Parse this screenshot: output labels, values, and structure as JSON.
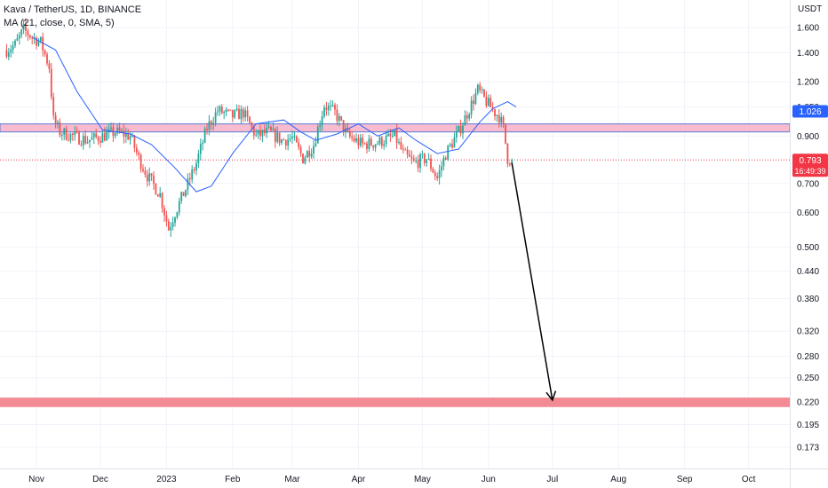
{
  "legend": {
    "title": "Kava / TetherUS, 1D, BINANCE",
    "ma": "MA (21, close, 0, SMA, 5)"
  },
  "colors": {
    "up": "#26a69a",
    "down": "#ef5350",
    "ma_line": "#2962ff",
    "current_price_badge": "#f23645",
    "blue_badge": "#2962ff",
    "zone_fill": "#f8bbd0",
    "zone_border": "#5b7bd5",
    "target_zone": "#f28b93",
    "arrow": "#000000"
  },
  "chart_data": {
    "type": "candlestick",
    "title": "Kava / TetherUS, 1D, BINANCE",
    "y_scale": "log",
    "y_unit": "USDT",
    "ylim": [
      0.16,
      1.75
    ],
    "y_ticks": [
      {
        "value": 1.6,
        "label": "1.600"
      },
      {
        "value": 1.4,
        "label": "1.400"
      },
      {
        "value": 1.2,
        "label": "1.200"
      },
      {
        "value": 1.05,
        "label": "1.050"
      },
      {
        "value": 0.9,
        "label": "0.900"
      },
      {
        "value": 0.7,
        "label": "0.700"
      },
      {
        "value": 0.6,
        "label": "0.600"
      },
      {
        "value": 0.5,
        "label": "0.500"
      },
      {
        "value": 0.44,
        "label": "0.440"
      },
      {
        "value": 0.38,
        "label": "0.380"
      },
      {
        "value": 0.32,
        "label": "0.320"
      },
      {
        "value": 0.28,
        "label": "0.280"
      },
      {
        "value": 0.25,
        "label": "0.250"
      },
      {
        "value": 0.22,
        "label": "0.220"
      },
      {
        "value": 0.195,
        "label": "0.195"
      },
      {
        "value": 0.173,
        "label": "0.173"
      }
    ],
    "x_ticks": [
      "Nov",
      "Dec",
      "2023",
      "Feb",
      "Mar",
      "Apr",
      "May",
      "Jun",
      "Jul",
      "Aug",
      "Sep",
      "Oct"
    ],
    "x_tick_dates": [
      "2022-11-01",
      "2022-12-01",
      "2023-01-01",
      "2023-02-01",
      "2023-03-01",
      "2023-04-01",
      "2023-05-01",
      "2023-06-01",
      "2023-07-01",
      "2023-08-01",
      "2023-09-01",
      "2023-10-01"
    ],
    "first_candle_date": "2022-10-18",
    "close_path": [
      [
        "2022-10-18",
        1.42
      ],
      [
        "2022-10-22",
        1.46
      ],
      [
        "2022-10-26",
        1.58
      ],
      [
        "2022-10-30",
        1.52
      ],
      [
        "2022-11-03",
        1.48
      ],
      [
        "2022-11-07",
        1.3
      ],
      [
        "2022-11-09",
        0.98
      ],
      [
        "2022-11-12",
        0.92
      ],
      [
        "2022-11-18",
        0.9
      ],
      [
        "2022-11-25",
        0.88
      ],
      [
        "2022-12-02",
        0.9
      ],
      [
        "2022-12-08",
        0.92
      ],
      [
        "2022-12-15",
        0.9
      ],
      [
        "2022-12-19",
        0.8
      ],
      [
        "2022-12-23",
        0.73
      ],
      [
        "2022-12-29",
        0.66
      ],
      [
        "2023-01-02",
        0.55
      ],
      [
        "2023-01-05",
        0.6
      ],
      [
        "2023-01-10",
        0.68
      ],
      [
        "2023-01-15",
        0.78
      ],
      [
        "2023-01-20",
        0.94
      ],
      [
        "2023-01-25",
        1.03
      ],
      [
        "2023-02-01",
        1.0
      ],
      [
        "2023-02-06",
        1.02
      ],
      [
        "2023-02-12",
        0.9
      ],
      [
        "2023-02-18",
        0.92
      ],
      [
        "2023-02-24",
        0.88
      ],
      [
        "2023-03-01",
        0.89
      ],
      [
        "2023-03-06",
        0.8
      ],
      [
        "2023-03-11",
        0.86
      ],
      [
        "2023-03-16",
        1.06
      ],
      [
        "2023-03-21",
        1.02
      ],
      [
        "2023-03-27",
        0.9
      ],
      [
        "2023-04-03",
        0.86
      ],
      [
        "2023-04-10",
        0.87
      ],
      [
        "2023-04-18",
        0.9
      ],
      [
        "2023-04-22",
        0.82
      ],
      [
        "2023-04-27",
        0.78
      ],
      [
        "2023-05-03",
        0.8
      ],
      [
        "2023-05-08",
        0.72
      ],
      [
        "2023-05-12",
        0.82
      ],
      [
        "2023-05-18",
        0.92
      ],
      [
        "2023-05-23",
        1.04
      ],
      [
        "2023-05-27",
        1.15
      ],
      [
        "2023-05-31",
        1.08
      ],
      [
        "2023-06-04",
        1.02
      ],
      [
        "2023-06-06",
        1.0
      ],
      [
        "2023-06-08",
        0.94
      ],
      [
        "2023-06-10",
        0.8
      ],
      [
        "2023-06-12",
        0.793
      ]
    ],
    "moving_average": {
      "name": "MA (21, close, 0, SMA, 5)",
      "path": [
        [
          "2022-10-30",
          1.52
        ],
        [
          "2022-11-10",
          1.42
        ],
        [
          "2022-11-20",
          1.14
        ],
        [
          "2022-12-02",
          0.93
        ],
        [
          "2022-12-15",
          0.91
        ],
        [
          "2022-12-25",
          0.86
        ],
        [
          "2023-01-05",
          0.76
        ],
        [
          "2023-01-15",
          0.67
        ],
        [
          "2023-01-22",
          0.69
        ],
        [
          "2023-02-01",
          0.82
        ],
        [
          "2023-02-12",
          0.96
        ],
        [
          "2023-02-25",
          0.98
        ],
        [
          "2023-03-05",
          0.92
        ],
        [
          "2023-03-12",
          0.88
        ],
        [
          "2023-03-22",
          0.91
        ],
        [
          "2023-04-01",
          0.96
        ],
        [
          "2023-04-10",
          0.9
        ],
        [
          "2023-04-20",
          0.94
        ],
        [
          "2023-04-28",
          0.88
        ],
        [
          "2023-05-08",
          0.82
        ],
        [
          "2023-05-18",
          0.84
        ],
        [
          "2023-05-28",
          0.97
        ],
        [
          "2023-06-03",
          1.04
        ],
        [
          "2023-06-10",
          1.08
        ],
        [
          "2023-06-14",
          1.05
        ]
      ]
    },
    "current_price": {
      "value": 0.793,
      "label": "0.793",
      "countdown": "16:49:39"
    },
    "blue_level_badge": {
      "value": 1.026,
      "label": "1.026"
    },
    "resistance_zone": {
      "low": 0.92,
      "high": 0.96
    },
    "target_zone": {
      "low": 0.214,
      "high": 0.225
    },
    "arrow": {
      "from_date": "2023-06-12",
      "from_value": 0.78,
      "to_date": "2023-07-01",
      "to_value": 0.222
    }
  },
  "axis": {
    "unit_label": "USDT"
  }
}
